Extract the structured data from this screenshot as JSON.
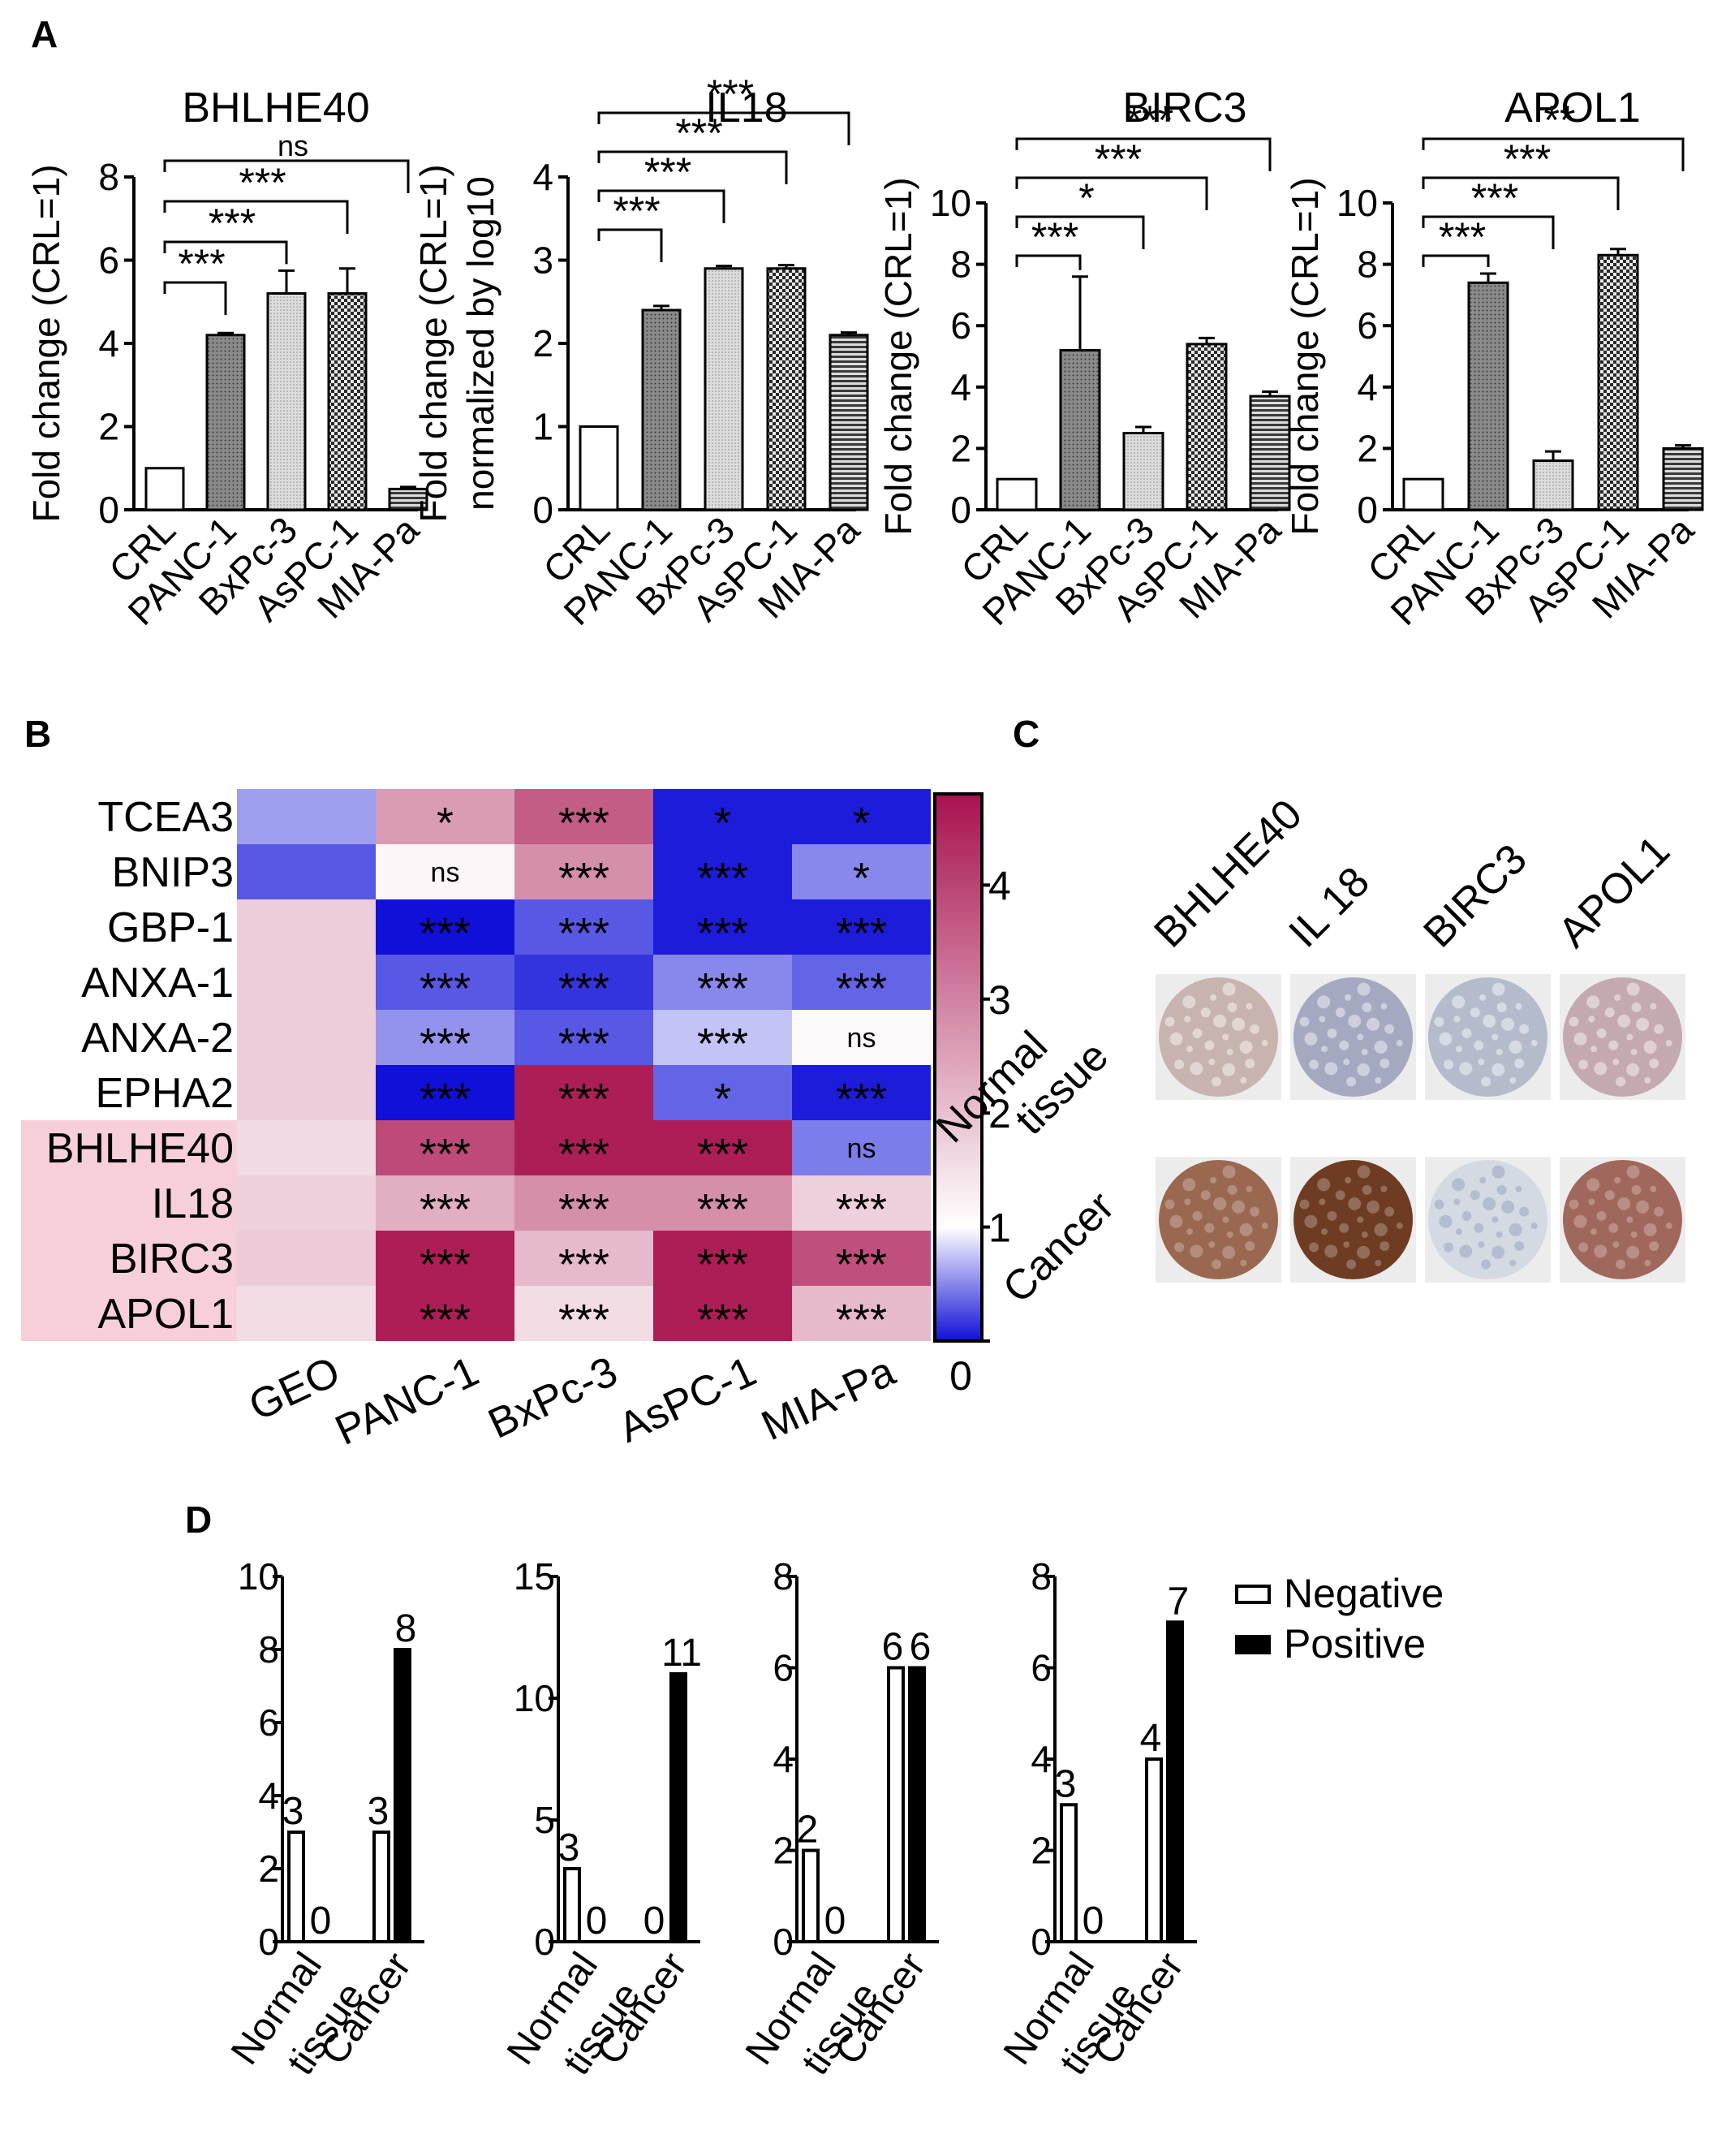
{
  "panels": {
    "A": "A",
    "B": "B",
    "C": "C",
    "D": "D"
  },
  "chart_data": [
    {
      "type": "bar",
      "panel": "A",
      "title": "BHLHE40",
      "ylabel": "Fold change (CRL=1)",
      "categories": [
        "CRL",
        "PANC-1",
        "BxPc-3",
        "AsPC-1",
        "MIA-Pa"
      ],
      "values": [
        1.0,
        4.2,
        5.2,
        5.2,
        0.5
      ],
      "errors": [
        0,
        0.05,
        0.55,
        0.6,
        0.05
      ],
      "ylim": [
        0,
        8
      ],
      "yticks": [
        "0",
        "2",
        "4",
        "6",
        "8"
      ],
      "sig": [
        {
          "to": 1,
          "label": "***"
        },
        {
          "to": 2,
          "label": "***"
        },
        {
          "to": 3,
          "label": "***"
        },
        {
          "to": 4,
          "label": "ns"
        }
      ]
    },
    {
      "type": "bar",
      "panel": "A",
      "title": "IL18",
      "ylabel": [
        "Fold change (CRL=1)",
        "normalized by log10"
      ],
      "categories": [
        "CRL",
        "PANC-1",
        "BxPc-3",
        "AsPC-1",
        "MIA-Pa"
      ],
      "values": [
        1.0,
        2.4,
        2.9,
        2.9,
        2.1
      ],
      "errors": [
        0,
        0.05,
        0.03,
        0.04,
        0.03
      ],
      "ylim": [
        0,
        4
      ],
      "yticks": [
        "0",
        "1",
        "2",
        "3",
        "4"
      ],
      "sig": [
        {
          "to": 1,
          "label": "***"
        },
        {
          "to": 2,
          "label": "***"
        },
        {
          "to": 3,
          "label": "***"
        },
        {
          "to": 4,
          "label": "***"
        }
      ]
    },
    {
      "type": "bar",
      "panel": "A",
      "title": "BIRC3",
      "ylabel": "Fold change (CRL=1)",
      "categories": [
        "CRL",
        "PANC-1",
        "BxPc-3",
        "AsPC-1",
        "MIA-Pa"
      ],
      "values": [
        1.0,
        5.2,
        2.5,
        5.4,
        3.7
      ],
      "errors": [
        0,
        2.4,
        0.2,
        0.2,
        0.15
      ],
      "ylim": [
        0,
        10
      ],
      "yticks": [
        "0",
        "2",
        "4",
        "6",
        "8",
        "10"
      ],
      "sig": [
        {
          "to": 1,
          "label": "***"
        },
        {
          "to": 2,
          "label": "*"
        },
        {
          "to": 3,
          "label": "***"
        },
        {
          "to": 4,
          "label": "***"
        }
      ]
    },
    {
      "type": "bar",
      "panel": "A",
      "title": "APOL1",
      "ylabel": "Fold change (CRL=1)",
      "categories": [
        "CRL",
        "PANC-1",
        "BxPc-3",
        "AsPC-1",
        "MIA-Pa"
      ],
      "values": [
        1.0,
        7.4,
        1.6,
        8.3,
        2.0
      ],
      "errors": [
        0,
        0.3,
        0.3,
        0.2,
        0.1
      ],
      "ylim": [
        0,
        10
      ],
      "yticks": [
        "0",
        "2",
        "4",
        "6",
        "8",
        "10"
      ],
      "sig": [
        {
          "to": 1,
          "label": "***"
        },
        {
          "to": 2,
          "label": "***"
        },
        {
          "to": 3,
          "label": "***"
        },
        {
          "to": 4,
          "label": "**"
        }
      ]
    },
    {
      "type": "heatmap",
      "panel": "B",
      "rows": [
        "TCEA3",
        "BNIP3",
        "GBP-1",
        "ANXA-1",
        "ANXA-2",
        "EPHA2",
        "BHLHE40",
        "IL18",
        "BIRC3",
        "APOL1"
      ],
      "columns": [
        "GEO",
        "PANC-1",
        "BxPc-3",
        "AsPC-1",
        "MIA-Pa"
      ],
      "values": [
        [
          0.6,
          2.6,
          3.6,
          0.05,
          0.05
        ],
        [
          0.3,
          1.15,
          2.8,
          0.05,
          0.5
        ],
        [
          1.8,
          0.0,
          0.3,
          0.05,
          0.05
        ],
        [
          1.8,
          0.3,
          0.15,
          0.5,
          0.35
        ],
        [
          1.8,
          0.55,
          0.3,
          0.75,
          1.1
        ],
        [
          1.8,
          0.0,
          4.6,
          0.35,
          0.05
        ],
        [
          1.6,
          3.9,
          4.6,
          4.6,
          0.45
        ],
        [
          1.75,
          2.3,
          2.8,
          2.8,
          1.75
        ],
        [
          1.85,
          4.6,
          2.1,
          4.6,
          3.8
        ],
        [
          1.55,
          4.6,
          1.55,
          4.6,
          2.1
        ]
      ],
      "labels": [
        [
          "",
          "*",
          "***",
          "*",
          "*"
        ],
        [
          "",
          "ns",
          "***",
          "***",
          "*"
        ],
        [
          "",
          "***",
          "***",
          "***",
          "***"
        ],
        [
          "",
          "***",
          "***",
          "***",
          "***"
        ],
        [
          "",
          "***",
          "***",
          "***",
          "ns"
        ],
        [
          "",
          "***",
          "***",
          "*",
          "***"
        ],
        [
          "",
          "***",
          "***",
          "***",
          "ns"
        ],
        [
          "",
          "***",
          "***",
          "***",
          "***"
        ],
        [
          "",
          "***",
          "***",
          "***",
          "***"
        ],
        [
          "",
          "***",
          "***",
          "***",
          "***"
        ]
      ],
      "highlight_rows": [
        "BHLHE40",
        "IL18",
        "BIRC3",
        "APOL1"
      ],
      "colorbar": {
        "min": 0,
        "max": 4.8,
        "ticks": [
          "0",
          "1",
          "2",
          "3",
          "4"
        ],
        "low": "#1010d8",
        "mid": "#ffffff",
        "high": "#a8124e"
      }
    },
    {
      "type": "bar",
      "panel": "D",
      "subplot": 1,
      "categories": [
        "Normal tissue",
        "Cancer"
      ],
      "series": [
        {
          "name": "Negative",
          "values": [
            3,
            3
          ]
        },
        {
          "name": "Positive",
          "values": [
            0,
            8
          ]
        }
      ],
      "ylim": [
        0,
        10
      ],
      "yticks": [
        "0",
        "2",
        "4",
        "6",
        "8",
        "10"
      ],
      "value_labels": [
        [
          "3",
          "0"
        ],
        [
          "3",
          "8"
        ]
      ]
    },
    {
      "type": "bar",
      "panel": "D",
      "subplot": 2,
      "categories": [
        "Normal tissue",
        "Cancer"
      ],
      "series": [
        {
          "name": "Negative",
          "values": [
            3,
            0
          ]
        },
        {
          "name": "Positive",
          "values": [
            0,
            11
          ]
        }
      ],
      "ylim": [
        0,
        15
      ],
      "yticks": [
        "0",
        "5",
        "10",
        "15"
      ],
      "value_labels": [
        [
          "3",
          "0"
        ],
        [
          "0",
          "11"
        ]
      ]
    },
    {
      "type": "bar",
      "panel": "D",
      "subplot": 3,
      "categories": [
        "Normal tissue",
        "Cancer"
      ],
      "series": [
        {
          "name": "Negative",
          "values": [
            2,
            6
          ]
        },
        {
          "name": "Positive",
          "values": [
            0,
            6
          ]
        }
      ],
      "ylim": [
        0,
        8
      ],
      "yticks": [
        "0",
        "2",
        "4",
        "6",
        "8"
      ],
      "value_labels": [
        [
          "2",
          "0"
        ],
        [
          "6",
          "6"
        ]
      ]
    },
    {
      "type": "bar",
      "panel": "D",
      "subplot": 4,
      "categories": [
        "Normal tissue",
        "Cancer"
      ],
      "series": [
        {
          "name": "Negative",
          "values": [
            3,
            4
          ]
        },
        {
          "name": "Positive",
          "values": [
            0,
            7
          ]
        }
      ],
      "ylim": [
        0,
        8
      ],
      "yticks": [
        "0",
        "2",
        "4",
        "6",
        "8"
      ],
      "value_labels": [
        [
          "3",
          "0"
        ],
        [
          "4",
          "7"
        ]
      ]
    }
  ],
  "ihc": {
    "genes": [
      "BHLHE40",
      "IL 18",
      "BIRC3",
      "APOL1"
    ],
    "rows": [
      [
        "Normal",
        "tissue"
      ],
      [
        "Cancer"
      ]
    ],
    "stain": [
      [
        "#c8b4ae",
        "#a4a8c0",
        "#b4bccc",
        "#c4aab0"
      ],
      [
        "#9a6850",
        "#6e3c22",
        "#d4dae2",
        "#a0685c"
      ]
    ]
  },
  "legend": {
    "negative": "Negative",
    "positive": "Positive"
  }
}
